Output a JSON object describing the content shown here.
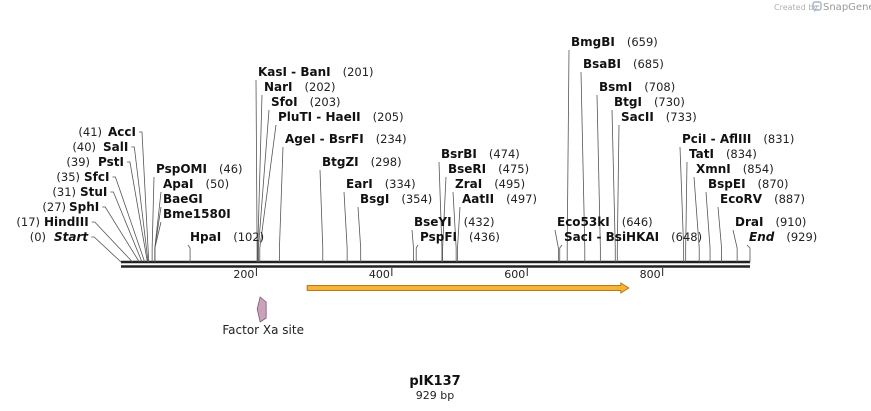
{
  "brand": {
    "credit": "Created by",
    "logo": "snapgene-logo",
    "name": "SnapGene"
  },
  "plasmid": {
    "name": "pIK137",
    "size_label": "929 bp",
    "length": 929
  },
  "axis_ticks": [
    {
      "label": "200",
      "value": 200
    },
    {
      "label": "400",
      "value": 400
    },
    {
      "label": "600",
      "value": 600
    },
    {
      "label": "800",
      "value": 800
    }
  ],
  "left_sites": [
    {
      "name": "Start",
      "pos": "(0)",
      "bp": 0,
      "italic": true
    },
    {
      "name": "HindIII",
      "pos": "(17)",
      "bp": 17
    },
    {
      "name": "SphI",
      "pos": "(27)",
      "bp": 27
    },
    {
      "name": "StuI",
      "pos": "(31)",
      "bp": 31
    },
    {
      "name": "SfcI",
      "pos": "(35)",
      "bp": 35
    },
    {
      "name": "PstI",
      "pos": "(39)",
      "bp": 39
    },
    {
      "name": "SalI",
      "pos": "(40)",
      "bp": 40
    },
    {
      "name": "AccI",
      "pos": "(41)",
      "bp": 41
    }
  ],
  "right_sites": [
    {
      "name": "PspOMI",
      "pos": "(46)",
      "bp": 46
    },
    {
      "name": "ApaI",
      "pos": "(50)",
      "bp": 50
    },
    {
      "name": "BaeGI",
      "pos": "",
      "bp": 50
    },
    {
      "name": "Bme1580I",
      "pos": "",
      "bp": 50
    },
    {
      "name": "HpaI",
      "pos": "(102)",
      "bp": 102
    },
    {
      "name": "KasI  -  BanI",
      "pos": "(201)",
      "bp": 201
    },
    {
      "name": "NarI",
      "pos": "(202)",
      "bp": 202
    },
    {
      "name": "SfoI",
      "pos": "(203)",
      "bp": 203
    },
    {
      "name": "PluTI  -  HaeII",
      "pos": "(205)",
      "bp": 205
    },
    {
      "name": "AgeI  -  BsrFI",
      "pos": "(234)",
      "bp": 234
    },
    {
      "name": "BtgZI",
      "pos": "(298)",
      "bp": 298
    },
    {
      "name": "EarI",
      "pos": "(334)",
      "bp": 334
    },
    {
      "name": "BsgI",
      "pos": "(354)",
      "bp": 354
    },
    {
      "name": "BseYI",
      "pos": "(432)",
      "bp": 432
    },
    {
      "name": "PspFI",
      "pos": "(436)",
      "bp": 436
    },
    {
      "name": "BsrBI",
      "pos": "(474)",
      "bp": 474
    },
    {
      "name": "BseRI",
      "pos": "(475)",
      "bp": 475
    },
    {
      "name": "ZraI",
      "pos": "(495)",
      "bp": 495
    },
    {
      "name": "AatII",
      "pos": "(497)",
      "bp": 497
    },
    {
      "name": "Eco53kI",
      "pos": "(646)",
      "bp": 646
    },
    {
      "name": "SacI  -  BsiHKAI",
      "pos": "(648)",
      "bp": 648
    },
    {
      "name": "BmgBI",
      "pos": "(659)",
      "bp": 659
    },
    {
      "name": "BsaBI",
      "pos": "(685)",
      "bp": 685
    },
    {
      "name": "BsmI",
      "pos": "(708)",
      "bp": 708
    },
    {
      "name": "BtgI",
      "pos": "(730)",
      "bp": 730
    },
    {
      "name": "SacII",
      "pos": "(733)",
      "bp": 733
    },
    {
      "name": "PciI  -  AflIII",
      "pos": "(831)",
      "bp": 831
    },
    {
      "name": "TatI",
      "pos": "(834)",
      "bp": 834
    },
    {
      "name": "XmnI",
      "pos": "(854)",
      "bp": 854
    },
    {
      "name": "BspEI",
      "pos": "(870)",
      "bp": 870
    },
    {
      "name": "EcoRV",
      "pos": "(887)",
      "bp": 887
    },
    {
      "name": "DraI",
      "pos": "(910)",
      "bp": 910
    },
    {
      "name": "End",
      "pos": "(929)",
      "bp": 929,
      "italic": true
    }
  ],
  "features": [
    {
      "name": "Factor Xa site",
      "start": 203,
      "end": 214,
      "color": "#c9a1ba",
      "type": "site"
    },
    {
      "name": "",
      "start": 275,
      "end": 750,
      "color": "#f5b335",
      "type": "arrow"
    }
  ],
  "colors": {
    "backbone": "#222222",
    "leader": "#555555",
    "arrow_fill": "#f5b335",
    "arrow_edge": "#b8781a",
    "site_fill": "#c9a1ba"
  }
}
